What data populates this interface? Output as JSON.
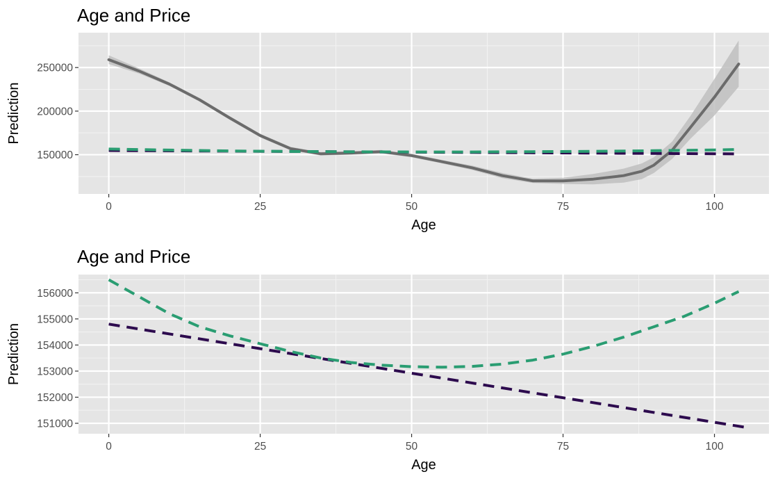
{
  "colors": {
    "panel_background": "#e5e5e5",
    "grid_major": "#ffffff",
    "grid_minor": "#f2f2f2",
    "smooth_line": "#6b6b6b",
    "smooth_band": "#c0c0c0",
    "series_linear": "#2d0b4e",
    "series_quadratic": "#2a9d72"
  },
  "chart_data": [
    {
      "type": "line",
      "title": "Age and Price",
      "xlabel": "Age",
      "ylabel": "Prediction",
      "xlim": [
        -5,
        109
      ],
      "ylim": [
        105000,
        290000
      ],
      "x_ticks": [
        0,
        25,
        50,
        75,
        100
      ],
      "x_tick_labels": [
        "0",
        "25",
        "50",
        "75",
        "100"
      ],
      "y_ticks": [
        150000,
        200000,
        250000
      ],
      "y_tick_labels": [
        "150000",
        "200000",
        "250000"
      ],
      "grid": true,
      "legend": "none",
      "smooth": {
        "x": [
          0,
          5,
          10,
          15,
          20,
          25,
          30,
          35,
          40,
          45,
          50,
          55,
          60,
          65,
          70,
          75,
          80,
          85,
          88,
          90,
          93,
          96,
          100,
          104
        ],
        "y": [
          259000,
          246000,
          231000,
          213000,
          192000,
          172000,
          157000,
          151000,
          152000,
          153500,
          149000,
          142000,
          135000,
          126000,
          120000,
          120000,
          122000,
          126000,
          131000,
          138000,
          155000,
          181000,
          216000,
          254000
        ],
        "lower": [
          254000,
          243000,
          229000,
          211000,
          190000,
          170000,
          155000,
          149000,
          150000,
          151500,
          147000,
          140000,
          132500,
          123000,
          117500,
          116500,
          116000,
          118000,
          122000,
          129000,
          145000,
          168000,
          195000,
          228000
        ],
        "upper": [
          264000,
          249000,
          233000,
          215000,
          194000,
          174000,
          159000,
          153000,
          154000,
          155500,
          151000,
          144000,
          137500,
          129000,
          122500,
          123500,
          128000,
          134000,
          140000,
          147000,
          165000,
          194000,
          237000,
          281000
        ]
      },
      "series": [
        {
          "x": [
            0,
            104
          ],
          "y": [
            154800,
            150900
          ],
          "color": "#2d0b4e",
          "dash": "dashed"
        },
        {
          "x": [
            0,
            10,
            20,
            30,
            40,
            50,
            55,
            60,
            70,
            80,
            90,
            100,
            104
          ],
          "y": [
            156500,
            155300,
            154300,
            153700,
            153300,
            153150,
            153150,
            153200,
            153500,
            153900,
            154600,
            155500,
            156000
          ],
          "color": "#2a9d72",
          "dash": "dashed"
        }
      ]
    },
    {
      "type": "line",
      "title": "Age and Price",
      "xlabel": "Age",
      "ylabel": "Prediction",
      "xlim": [
        -5,
        109
      ],
      "ylim": [
        150600,
        156700
      ],
      "x_ticks": [
        0,
        25,
        50,
        75,
        100
      ],
      "x_tick_labels": [
        "0",
        "25",
        "50",
        "75",
        "100"
      ],
      "y_ticks": [
        151000,
        152000,
        153000,
        154000,
        155000,
        156000
      ],
      "y_tick_labels": [
        "151000",
        "152000",
        "153000",
        "154000",
        "155000",
        "156000"
      ],
      "grid": true,
      "legend": "none",
      "series": [
        {
          "x": [
            0,
            105
          ],
          "y": [
            154800,
            150850
          ],
          "color": "#2d0b4e",
          "dash": "dashed"
        },
        {
          "x": [
            0,
            5,
            10,
            15,
            20,
            25,
            30,
            35,
            40,
            45,
            50,
            55,
            60,
            65,
            70,
            75,
            80,
            85,
            90,
            95,
            100,
            104
          ],
          "y": [
            156500,
            155850,
            155200,
            154700,
            154350,
            154050,
            153750,
            153500,
            153330,
            153230,
            153170,
            153150,
            153180,
            153270,
            153420,
            153650,
            153950,
            154300,
            154700,
            155100,
            155600,
            156050
          ],
          "color": "#2a9d72",
          "dash": "dashed"
        }
      ]
    }
  ]
}
